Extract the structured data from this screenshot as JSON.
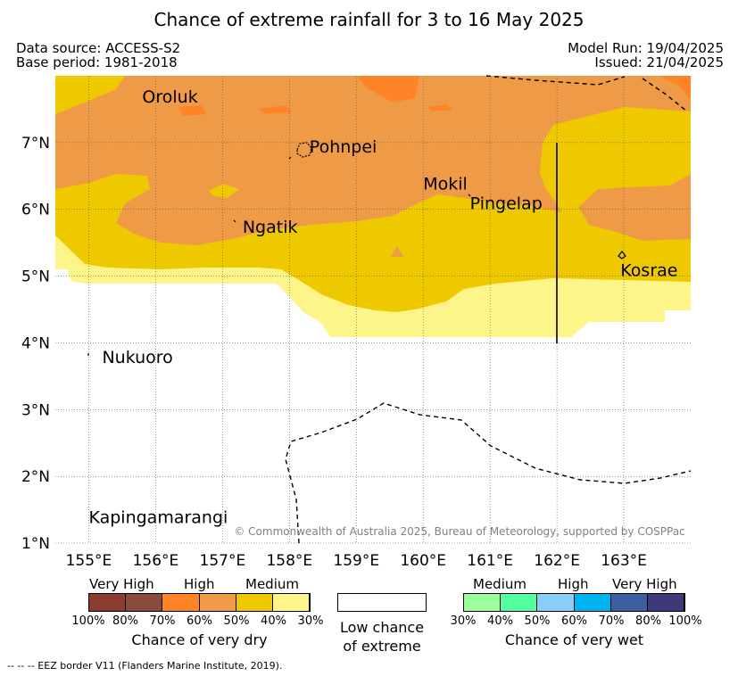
{
  "title": "Chance of extreme rainfall for 3 to 16 May 2025",
  "data_source": "Data source: ACCESS-S2",
  "base_period": "Base period: 1981-2018",
  "model_run": "Model Run: 19/04/2025",
  "issued": "Issued: 21/04/2025",
  "copyright": "© Commonwealth of Australia 2025, Bureau of Meteorology, supported by COSPPac",
  "footnote": "--  --  -- EEZ border V11 (Flanders Marine Institute, 2019).",
  "map": {
    "lon_range": [
      154.5,
      164.0
    ],
    "lat_range": [
      1.0,
      8.0
    ],
    "lon_ticks": [
      {
        "value": 155,
        "label": "155°E"
      },
      {
        "value": 156,
        "label": "156°E"
      },
      {
        "value": 157,
        "label": "157°E"
      },
      {
        "value": 158,
        "label": "158°E"
      },
      {
        "value": 159,
        "label": "159°E"
      },
      {
        "value": 160,
        "label": "160°E"
      },
      {
        "value": 161,
        "label": "161°E"
      },
      {
        "value": 162,
        "label": "162°E"
      },
      {
        "value": 163,
        "label": "163°E"
      }
    ],
    "lat_ticks": [
      {
        "value": 1,
        "label": "1°N"
      },
      {
        "value": 2,
        "label": "2°N"
      },
      {
        "value": 3,
        "label": "3°N"
      },
      {
        "value": 4,
        "label": "4°N"
      },
      {
        "value": 5,
        "label": "5°N"
      },
      {
        "value": 6,
        "label": "6°N"
      },
      {
        "value": 7,
        "label": "7°N"
      }
    ],
    "places": [
      {
        "name": "Oroluk",
        "lon": 155.8,
        "lat": 7.6
      },
      {
        "name": "Pohnpei",
        "lon": 158.3,
        "lat": 6.85
      },
      {
        "name": "Mokil",
        "lon": 160.0,
        "lat": 6.3
      },
      {
        "name": "Pingelap",
        "lon": 160.7,
        "lat": 6.0
      },
      {
        "name": "Ngatik",
        "lon": 157.3,
        "lat": 5.65
      },
      {
        "name": "Kosrae",
        "lon": 162.95,
        "lat": 5.0
      },
      {
        "name": "Nukuoro",
        "lon": 155.2,
        "lat": 3.7
      },
      {
        "name": "Kapingamarangi",
        "lon": 155.0,
        "lat": 1.3
      }
    ],
    "grid": true
  },
  "legend": {
    "dry": {
      "categories": [
        {
          "label": "Very High"
        },
        {
          "label": "High"
        },
        {
          "label": "Medium"
        }
      ],
      "swatches": [
        {
          "color": "#8b3e2f"
        },
        {
          "color": "#8b4b3c"
        },
        {
          "color": "#fe8427"
        },
        {
          "color": "#ee9a46"
        },
        {
          "color": "#eec900"
        },
        {
          "color": "#fef58a"
        }
      ],
      "tick_labels": [
        "100%",
        "80%",
        "70%",
        "60%",
        "50%",
        "40%",
        "30%"
      ],
      "title": "Chance of very dry"
    },
    "low": {
      "title_line1": "Low chance",
      "title_line2": "of extreme",
      "color": "#ffffff"
    },
    "wet": {
      "categories": [
        {
          "label": "Medium"
        },
        {
          "label": "High"
        },
        {
          "label": "Very High"
        }
      ],
      "swatches": [
        {
          "color": "#9aff9a"
        },
        {
          "color": "#54ff9f"
        },
        {
          "color": "#87cefa"
        },
        {
          "color": "#00b2ee"
        },
        {
          "color": "#3a5fa0"
        },
        {
          "color": "#3e3a7a"
        }
      ],
      "tick_labels": [
        "30%",
        "40%",
        "50%",
        "60%",
        "70%",
        "80%",
        "100%"
      ],
      "title": "Chance of very wet"
    }
  }
}
